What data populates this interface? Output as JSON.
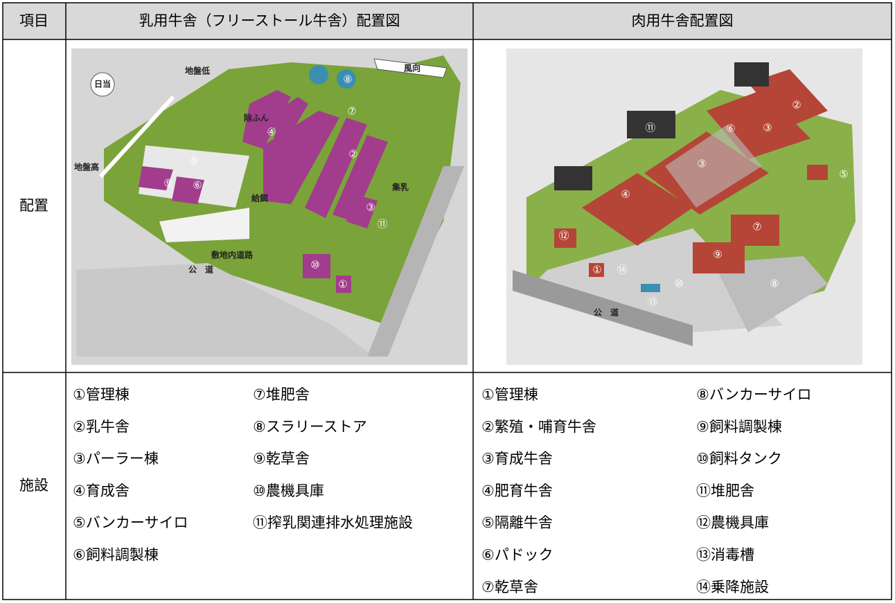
{
  "header": {
    "item": "項目",
    "dairy": "乳用牛舎（フリーストール牛舎）配置図",
    "beef": "肉用牛舎配置図"
  },
  "layout_row": "配置",
  "facility_row": "施設",
  "dairy_map": {
    "labels": [
      "日当",
      "地盤低",
      "風向",
      "地盤高",
      "除ふん",
      "集乳",
      "給餌",
      "敷地内道路",
      "公　道"
    ],
    "numbers": [
      "①",
      "②",
      "③",
      "④",
      "⑤",
      "⑥",
      "⑦",
      "⑧",
      "⑨",
      "⑩",
      "⑪"
    ]
  },
  "beef_map": {
    "labels": [
      "公　道"
    ],
    "numbers": [
      "①",
      "②",
      "③",
      "③",
      "④",
      "⑤",
      "⑥",
      "⑦",
      "⑧",
      "⑨",
      "⑩",
      "⑪",
      "⑫",
      "⑬",
      "⑭"
    ]
  },
  "dairy_facilities": [
    "①管理棟",
    "②乳牛舎",
    "③パーラー棟",
    "④育成舎",
    "⑤バンカーサイロ",
    "⑥飼料調製棟",
    "⑦堆肥舎",
    "⑧スラリーストア",
    "⑨乾草舎",
    "⑩農機具庫",
    "⑪搾乳関連排水処理施設"
  ],
  "beef_facilities": [
    "①管理棟",
    "②繁殖・哺育牛舎",
    "③育成牛舎",
    "④肥育牛舎",
    "⑤隔離牛舎",
    "⑥パドック",
    "⑦乾草舎",
    "⑧バンカーサイロ",
    "⑨飼料調製棟",
    "⑩飼料タンク",
    "⑪堆肥舎",
    "⑫農機具庫",
    "⑬消毒槽",
    "⑭乗降施設"
  ]
}
